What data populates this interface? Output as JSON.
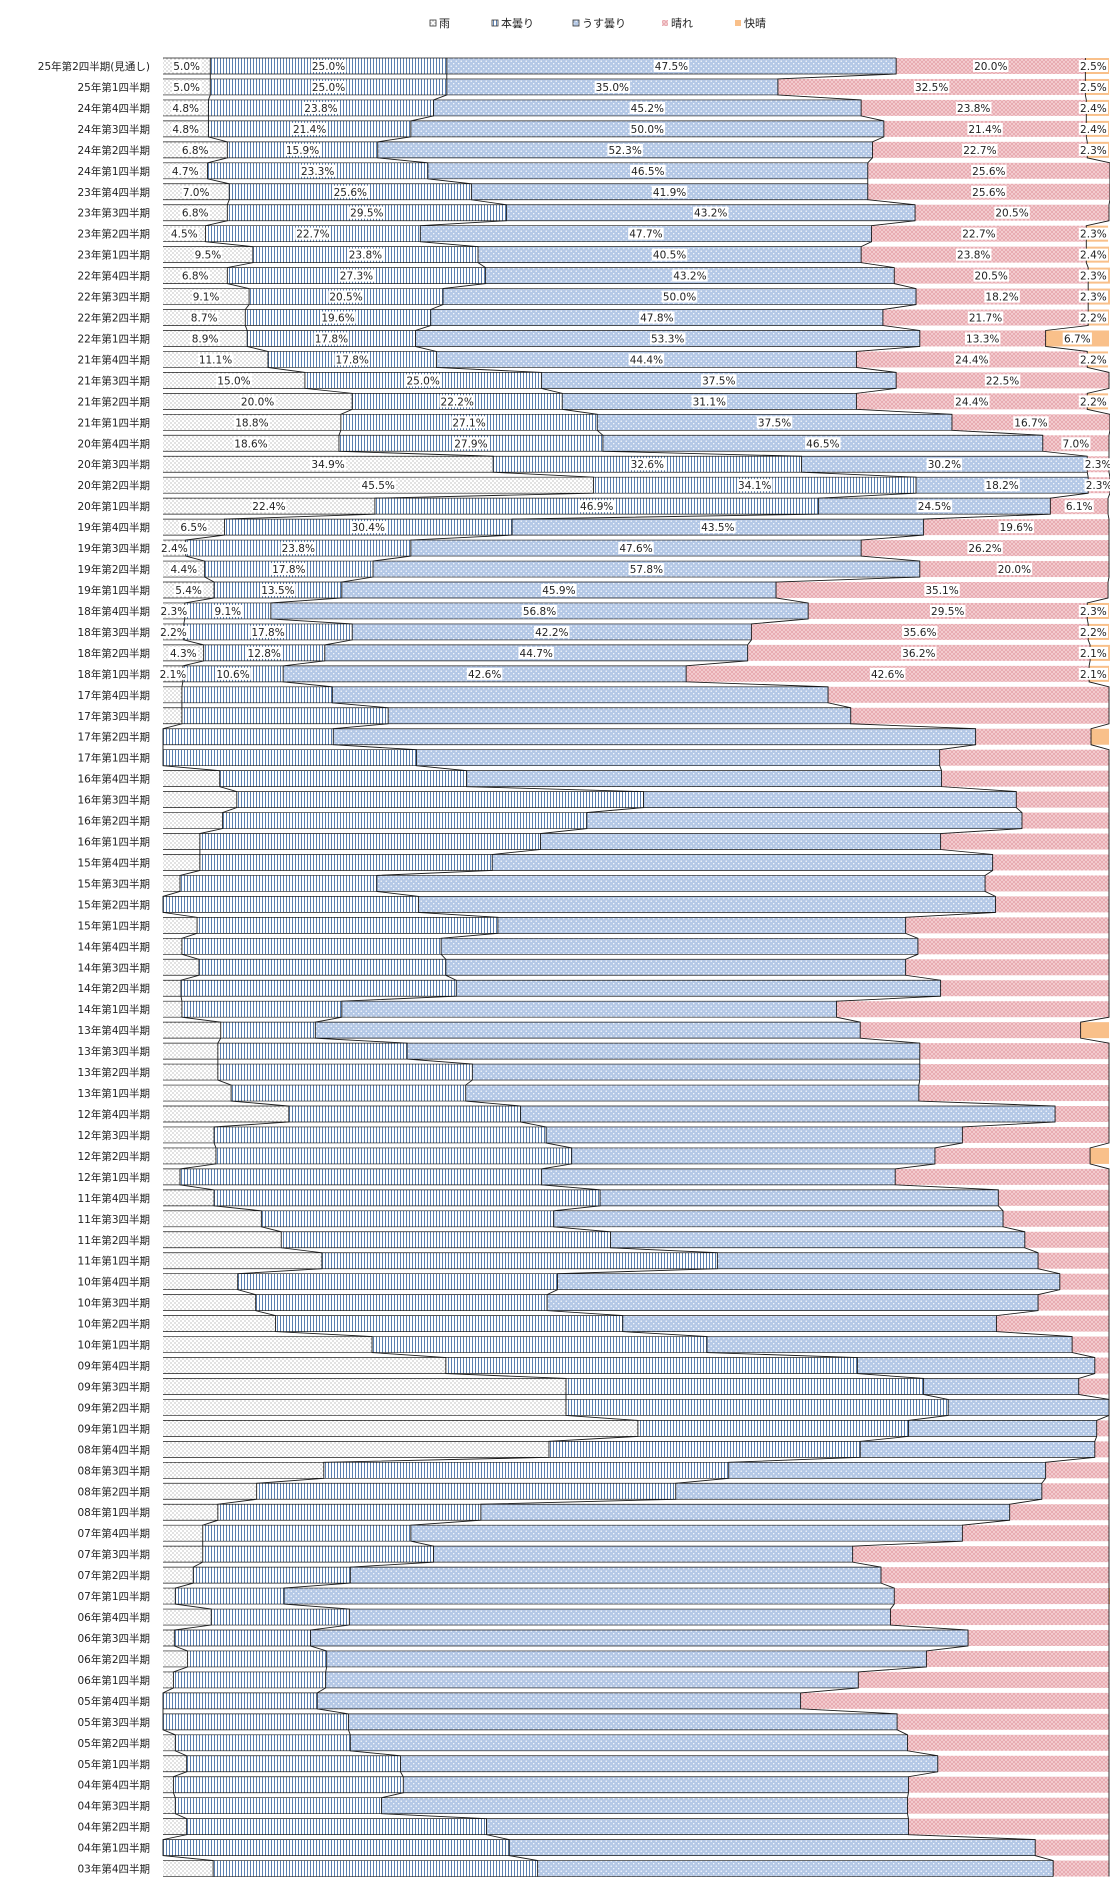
{
  "chart_data": {
    "type": "bar",
    "stacked": true,
    "orientation": "horizontal",
    "xlim": [
      0,
      100
    ],
    "legend_position": "top",
    "grid": false,
    "series": [
      {
        "name": "雨",
        "color": "#ffffff",
        "pattern": "dots"
      },
      {
        "name": "本曇り",
        "color": "#ffffff",
        "pattern": "vertical-lines"
      },
      {
        "name": "うす曇り",
        "color": "#b8cce4",
        "pattern": "dots"
      },
      {
        "name": "晴れ",
        "color": "#f2c4c8",
        "pattern": "crosshatch"
      },
      {
        "name": "快晴",
        "color": "#f9c18b",
        "pattern": "solid"
      }
    ],
    "categories": [
      "25年第2四半期(見通し)",
      "25年第1四半期",
      "24年第4四半期",
      "24年第3四半期",
      "24年第2四半期",
      "24年第1四半期",
      "23年第4四半期",
      "23年第3四半期",
      "23年第2四半期",
      "23年第1四半期",
      "22年第4四半期",
      "22年第3四半期",
      "22年第2四半期",
      "22年第1四半期",
      "21年第4四半期",
      "21年第3四半期",
      "21年第2四半期",
      "21年第1四半期",
      "20年第4四半期",
      "20年第3四半期",
      "20年第2四半期",
      "20年第1四半期",
      "19年第4四半期",
      "19年第3四半期",
      "19年第2四半期",
      "19年第1四半期",
      "18年第4四半期",
      "18年第3四半期",
      "18年第2四半期",
      "18年第1四半期",
      "17年第4四半期",
      "17年第3四半期",
      "17年第2四半期",
      "17年第1四半期",
      "16年第4四半期",
      "16年第3四半期",
      "16年第2四半期",
      "16年第1四半期",
      "15年第4四半期",
      "15年第3四半期",
      "15年第2四半期",
      "15年第1四半期",
      "14年第4四半期",
      "14年第3四半期",
      "14年第2四半期",
      "14年第1四半期",
      "13年第4四半期",
      "13年第3四半期",
      "13年第2四半期",
      "13年第1四半期",
      "12年第4四半期",
      "12年第3四半期",
      "12年第2四半期",
      "12年第1四半期",
      "11年第4四半期",
      "11年第3四半期",
      "11年第2四半期",
      "11年第1四半期",
      "10年第4四半期",
      "10年第3四半期",
      "10年第2四半期",
      "10年第1四半期",
      "09年第4四半期",
      "09年第3四半期",
      "09年第2四半期",
      "09年第1四半期",
      "08年第4四半期",
      "08年第3四半期",
      "08年第2四半期",
      "08年第1四半期",
      "07年第4四半期",
      "07年第3四半期",
      "07年第2四半期",
      "07年第1四半期",
      "06年第4四半期",
      "06年第3四半期",
      "06年第2四半期",
      "06年第1四半期",
      "05年第4四半期",
      "05年第3四半期",
      "05年第2四半期",
      "05年第1四半期",
      "04年第4四半期",
      "04年第3四半期",
      "04年第2四半期",
      "04年第1四半期",
      "03年第4四半期"
    ],
    "values": [
      [
        5.0,
        25.0,
        47.5,
        20.0,
        2.5
      ],
      [
        5.0,
        25.0,
        35.0,
        32.5,
        2.5
      ],
      [
        4.8,
        23.8,
        45.2,
        23.8,
        2.4
      ],
      [
        4.8,
        21.4,
        50.0,
        21.4,
        2.4
      ],
      [
        6.8,
        15.9,
        52.3,
        22.7,
        2.3
      ],
      [
        4.7,
        23.3,
        46.5,
        25.6,
        0
      ],
      [
        7.0,
        25.6,
        41.9,
        25.6,
        0
      ],
      [
        6.8,
        29.5,
        43.2,
        20.5,
        0
      ],
      [
        4.5,
        22.7,
        47.7,
        22.7,
        2.3
      ],
      [
        9.5,
        23.8,
        40.5,
        23.8,
        2.4
      ],
      [
        6.8,
        27.3,
        43.2,
        20.5,
        2.3
      ],
      [
        9.1,
        20.5,
        50.0,
        18.2,
        2.3
      ],
      [
        8.7,
        19.6,
        47.8,
        21.7,
        2.2
      ],
      [
        8.9,
        17.8,
        53.3,
        13.3,
        6.7
      ],
      [
        11.1,
        17.8,
        44.4,
        24.4,
        2.2
      ],
      [
        15.0,
        25.0,
        37.5,
        22.5,
        0
      ],
      [
        20.0,
        22.2,
        31.1,
        24.4,
        2.2
      ],
      [
        18.8,
        27.1,
        37.5,
        16.7,
        0
      ],
      [
        18.6,
        27.9,
        46.5,
        7.0,
        0
      ],
      [
        34.9,
        32.6,
        30.2,
        2.3,
        0
      ],
      [
        45.5,
        34.1,
        18.2,
        2.3,
        0
      ],
      [
        22.4,
        46.9,
        24.5,
        6.1,
        0
      ],
      [
        6.5,
        30.4,
        43.5,
        19.6,
        0
      ],
      [
        2.4,
        23.8,
        47.6,
        26.2,
        0
      ],
      [
        4.4,
        17.8,
        57.8,
        20.0,
        0
      ],
      [
        5.4,
        13.5,
        45.9,
        35.1,
        0
      ],
      [
        2.3,
        9.1,
        56.8,
        29.5,
        2.3
      ],
      [
        2.2,
        17.8,
        42.2,
        35.6,
        2.2
      ],
      [
        4.3,
        12.8,
        44.7,
        36.2,
        2.1
      ],
      [
        2.1,
        10.6,
        42.6,
        42.6,
        2.1
      ],
      [
        2,
        15.9,
        52.4,
        29.7,
        0
      ],
      [
        2,
        21.8,
        48.9,
        27.3,
        0
      ],
      [
        0,
        18,
        67.9,
        12.2,
        1.9
      ],
      [
        0,
        26.8,
        55.3,
        17.9,
        0
      ],
      [
        6,
        26.1,
        50.2,
        17.7,
        0
      ],
      [
        7.8,
        43,
        39.4,
        9.8,
        0
      ],
      [
        6.3,
        38.5,
        46,
        9.2,
        0
      ],
      [
        3.9,
        36,
        42.3,
        17.8,
        0
      ],
      [
        3.9,
        30.9,
        52.9,
        12.3,
        0
      ],
      [
        1.8,
        20.8,
        64.3,
        13.1,
        0
      ],
      [
        0,
        27,
        61,
        12,
        0
      ],
      [
        3.6,
        31.8,
        43.1,
        21.5,
        0
      ],
      [
        2,
        27.4,
        50.4,
        20.2,
        0
      ],
      [
        3.8,
        26.1,
        48.6,
        21.5,
        0
      ],
      [
        1.9,
        29.1,
        51.2,
        17.8,
        0
      ],
      [
        2,
        16.9,
        52.3,
        28.8,
        0
      ],
      [
        6.1,
        10,
        57.6,
        23.3,
        3
      ],
      [
        5.8,
        20,
        54.2,
        20,
        0
      ],
      [
        5.8,
        26.9,
        47.3,
        20,
        0
      ],
      [
        7.2,
        24.8,
        47.9,
        20.1,
        0
      ],
      [
        13.3,
        24.5,
        56.5,
        5.7,
        0
      ],
      [
        5.4,
        35.1,
        44,
        15.5,
        0
      ],
      [
        5.6,
        37.6,
        38.4,
        16.4,
        2
      ],
      [
        1.8,
        38.2,
        37.4,
        22.6,
        0
      ],
      [
        5.4,
        40.8,
        42.1,
        11.7,
        0
      ],
      [
        10.4,
        30.9,
        47.5,
        11.2,
        0
      ],
      [
        12.5,
        34.8,
        43.8,
        8.9,
        0
      ],
      [
        16.8,
        41.8,
        33.9,
        7.5,
        0
      ],
      [
        7.9,
        33.8,
        53.1,
        5.2,
        0
      ],
      [
        9.8,
        30.8,
        51.9,
        7.5,
        0
      ],
      [
        11.9,
        36.7,
        39.5,
        11.9,
        0
      ],
      [
        22.1,
        35.4,
        38.6,
        3.9,
        0
      ],
      [
        29.9,
        43.5,
        25.1,
        1.5,
        0
      ],
      [
        42.6,
        37.8,
        16.4,
        3.2,
        0
      ],
      [
        42.6,
        40.4,
        17,
        0,
        0
      ],
      [
        50.2,
        28.6,
        19.9,
        1.3,
        0
      ],
      [
        40.8,
        32.9,
        24.8,
        1.5,
        0
      ],
      [
        17,
        42.8,
        33.5,
        6.7,
        0
      ],
      [
        9.9,
        44.3,
        38.7,
        7.1,
        0
      ],
      [
        5.8,
        27.8,
        55.9,
        10.5,
        0
      ],
      [
        4.2,
        22,
        58.3,
        15.5,
        0
      ],
      [
        4.2,
        24.4,
        44.3,
        27.1,
        0
      ],
      [
        3.2,
        16.6,
        56.1,
        24.1,
        0
      ],
      [
        1.3,
        11.5,
        64.5,
        22.7,
        1.3
      ],
      [
        5.1,
        14.6,
        57.2,
        23.1,
        0
      ],
      [
        1.2,
        14.4,
        69.5,
        14.9,
        0
      ],
      [
        2.6,
        14.7,
        63.4,
        19.3,
        0
      ],
      [
        1.1,
        16.1,
        56.3,
        26.5,
        0
      ],
      [
        0,
        16.3,
        51.1,
        32.6,
        0
      ],
      [
        0,
        19.6,
        58,
        22.4,
        0
      ],
      [
        1.3,
        18.5,
        58.9,
        21.3,
        0
      ],
      [
        2.5,
        22.6,
        56.8,
        18.1,
        0
      ],
      [
        1.1,
        24.3,
        53.4,
        21.2,
        0
      ],
      [
        1.3,
        21.8,
        55.6,
        21.3,
        0
      ],
      [
        2.5,
        31.7,
        44.6,
        21.2,
        0
      ],
      [
        0,
        36.6,
        55.6,
        7.8,
        0
      ],
      [
        5.3,
        34.3,
        54.5,
        5.9,
        0
      ]
    ],
    "label_rows": 30
  }
}
